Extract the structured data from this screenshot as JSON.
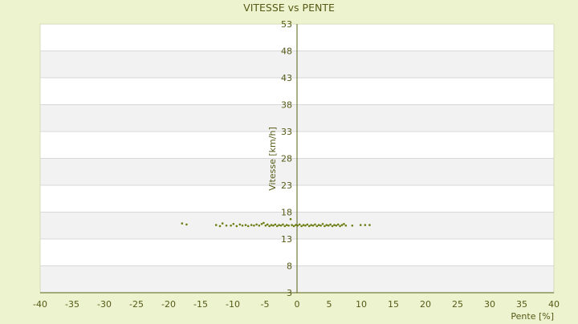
{
  "chart_data": {
    "type": "scatter",
    "title": "VITESSE vs PENTE",
    "xlabel": "Pente [%]",
    "ylabel": "Vitesse [km/h]",
    "xlim": [
      -40,
      40
    ],
    "ylim": [
      3,
      53
    ],
    "x_ticks": [
      -40,
      -35,
      -30,
      -25,
      -20,
      -15,
      -10,
      -5,
      0,
      5,
      10,
      15,
      20,
      25,
      30,
      35,
      40
    ],
    "y_ticks": [
      3,
      8,
      13,
      18,
      23,
      28,
      33,
      38,
      43,
      48,
      53
    ],
    "grid": true,
    "colors": {
      "background": "#eef3cf",
      "plot_band_light": "#ffffff",
      "plot_band_dark": "#f2f2f2",
      "gridline": "#d8d8d8",
      "axis": "#556014",
      "marker": "#6b7d10",
      "text": "#555a16"
    },
    "points": [
      [
        -17.9,
        15.9
      ],
      [
        -17.2,
        15.7
      ],
      [
        -12.6,
        15.6
      ],
      [
        -12.0,
        15.4
      ],
      [
        -11.6,
        15.9
      ],
      [
        -11.0,
        15.5
      ],
      [
        -10.3,
        15.5
      ],
      [
        -9.9,
        15.8
      ],
      [
        -9.4,
        15.4
      ],
      [
        -8.9,
        15.7
      ],
      [
        -8.5,
        15.5
      ],
      [
        -8.0,
        15.6
      ],
      [
        -7.6,
        15.4
      ],
      [
        -7.1,
        15.6
      ],
      [
        -6.7,
        15.5
      ],
      [
        -6.3,
        15.7
      ],
      [
        -5.9,
        15.5
      ],
      [
        -5.5,
        15.8
      ],
      [
        -5.2,
        16.0
      ],
      [
        -4.9,
        15.5
      ],
      [
        -4.6,
        15.7
      ],
      [
        -4.3,
        15.4
      ],
      [
        -4.0,
        15.6
      ],
      [
        -3.7,
        15.5
      ],
      [
        -3.4,
        15.7
      ],
      [
        -3.1,
        15.4
      ],
      [
        -2.8,
        15.6
      ],
      [
        -2.5,
        15.5
      ],
      [
        -2.2,
        15.7
      ],
      [
        -1.9,
        15.4
      ],
      [
        -1.6,
        15.6
      ],
      [
        -1.3,
        15.5
      ],
      [
        -1.0,
        16.7
      ],
      [
        -0.8,
        15.6
      ],
      [
        -0.5,
        15.4
      ],
      [
        -0.2,
        15.6
      ],
      [
        0.1,
        15.5
      ],
      [
        0.4,
        15.7
      ],
      [
        0.7,
        15.4
      ],
      [
        1.0,
        15.6
      ],
      [
        1.3,
        15.5
      ],
      [
        1.6,
        15.7
      ],
      [
        1.9,
        15.4
      ],
      [
        2.2,
        15.6
      ],
      [
        2.5,
        15.5
      ],
      [
        2.8,
        15.7
      ],
      [
        3.1,
        15.4
      ],
      [
        3.4,
        15.6
      ],
      [
        3.7,
        15.5
      ],
      [
        4.0,
        15.8
      ],
      [
        4.3,
        15.4
      ],
      [
        4.6,
        15.6
      ],
      [
        4.9,
        15.5
      ],
      [
        5.2,
        15.7
      ],
      [
        5.5,
        15.4
      ],
      [
        5.8,
        15.6
      ],
      [
        6.1,
        15.5
      ],
      [
        6.4,
        15.7
      ],
      [
        6.7,
        15.4
      ],
      [
        7.0,
        15.6
      ],
      [
        7.3,
        15.8
      ],
      [
        7.6,
        15.5
      ],
      [
        8.6,
        15.5
      ],
      [
        9.9,
        15.6
      ],
      [
        10.6,
        15.6
      ],
      [
        11.3,
        15.6
      ]
    ]
  }
}
